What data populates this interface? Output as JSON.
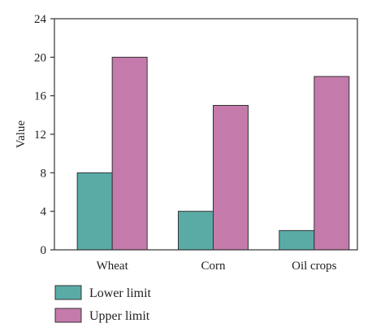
{
  "chart_data": {
    "type": "bar",
    "categories": [
      "Wheat",
      "Corn",
      "Oil crops"
    ],
    "series": [
      {
        "name": "Lower limit",
        "values": [
          8,
          4,
          2
        ],
        "color": "#5aaba6"
      },
      {
        "name": "Upper limit",
        "values": [
          20,
          15,
          18
        ],
        "color": "#c57aac"
      }
    ],
    "title": "",
    "xlabel": "",
    "ylabel": "Value",
    "ylim": [
      0,
      24
    ],
    "yticks": [
      0,
      4,
      8,
      12,
      16,
      20,
      24
    ],
    "grid": false,
    "legend_position": "bottom-left"
  }
}
